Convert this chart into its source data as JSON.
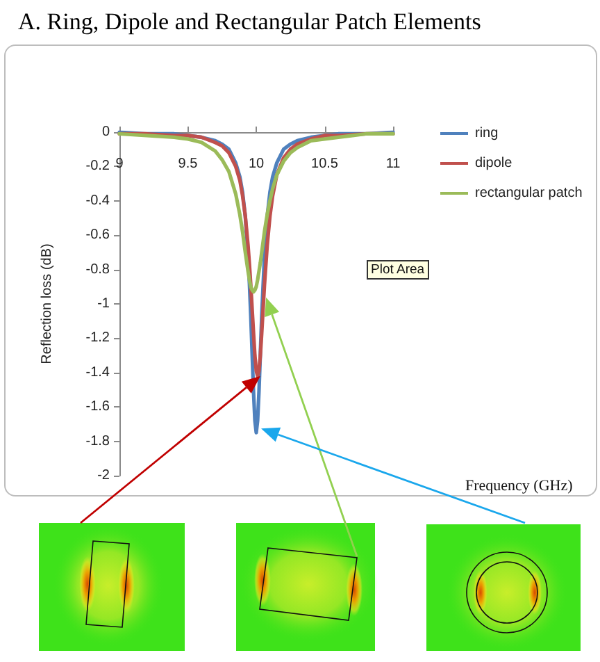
{
  "chart_data": {
    "type": "line",
    "title": "A. Ring, Dipole and Rectangular Patch Elements",
    "xlabel": "Frequency (GHz)",
    "ylabel": "Reflection loss (dB)",
    "annotations": [
      "Plot Area"
    ],
    "x": [
      9,
      9.2,
      9.4,
      9.5,
      9.6,
      9.7,
      9.75,
      9.8,
      9.85,
      9.88,
      9.9,
      9.92,
      9.94,
      9.95,
      9.96,
      9.97,
      9.98,
      9.99,
      10,
      10.01,
      10.02,
      10.03,
      10.04,
      10.06,
      10.08,
      10.1,
      10.12,
      10.15,
      10.2,
      10.25,
      10.3,
      10.4,
      10.5,
      10.6,
      10.8,
      11
    ],
    "series": [
      {
        "name": "ring",
        "color": "#4f81bd",
        "values": [
          0,
          -0.01,
          -0.01,
          -0.02,
          -0.03,
          -0.05,
          -0.07,
          -0.1,
          -0.18,
          -0.26,
          -0.35,
          -0.49,
          -0.72,
          -0.88,
          -1.07,
          -1.29,
          -1.51,
          -1.68,
          -1.75,
          -1.68,
          -1.51,
          -1.29,
          -1.07,
          -0.72,
          -0.49,
          -0.35,
          -0.26,
          -0.18,
          -0.1,
          -0.07,
          -0.05,
          -0.03,
          -0.02,
          -0.01,
          -0.01,
          0
        ]
      },
      {
        "name": "dipole",
        "color": "#c0504d",
        "values": [
          -0.01,
          -0.01,
          -0.02,
          -0.02,
          -0.03,
          -0.06,
          -0.08,
          -0.12,
          -0.2,
          -0.28,
          -0.37,
          -0.49,
          -0.66,
          -0.77,
          -0.89,
          -1.03,
          -1.17,
          -1.3,
          -1.39,
          -1.42,
          -1.39,
          -1.3,
          -1.17,
          -0.89,
          -0.66,
          -0.49,
          -0.37,
          -0.25,
          -0.15,
          -0.1,
          -0.07,
          -0.04,
          -0.02,
          -0.02,
          -0.01,
          -0.01
        ]
      },
      {
        "name": "rectangular patch",
        "color": "#9bbb59",
        "values": [
          -0.01,
          -0.02,
          -0.03,
          -0.04,
          -0.06,
          -0.11,
          -0.16,
          -0.23,
          -0.36,
          -0.48,
          -0.58,
          -0.7,
          -0.81,
          -0.86,
          -0.9,
          -0.92,
          -0.93,
          -0.92,
          -0.9,
          -0.86,
          -0.81,
          -0.76,
          -0.7,
          -0.58,
          -0.48,
          -0.4,
          -0.33,
          -0.25,
          -0.17,
          -0.12,
          -0.09,
          -0.05,
          -0.04,
          -0.03,
          -0.01,
          -0.01
        ]
      }
    ],
    "xlim": [
      9,
      11
    ],
    "xticks": [
      9,
      9.5,
      10,
      10.5,
      11
    ],
    "ylim": [
      -2,
      0
    ],
    "yticks": [
      -2,
      -1.8,
      -1.6,
      -1.4,
      -1.2,
      -1,
      -0.8,
      -0.6,
      -0.4,
      -0.2,
      0
    ],
    "grid": false,
    "legend": "right",
    "marker": "none"
  }
}
